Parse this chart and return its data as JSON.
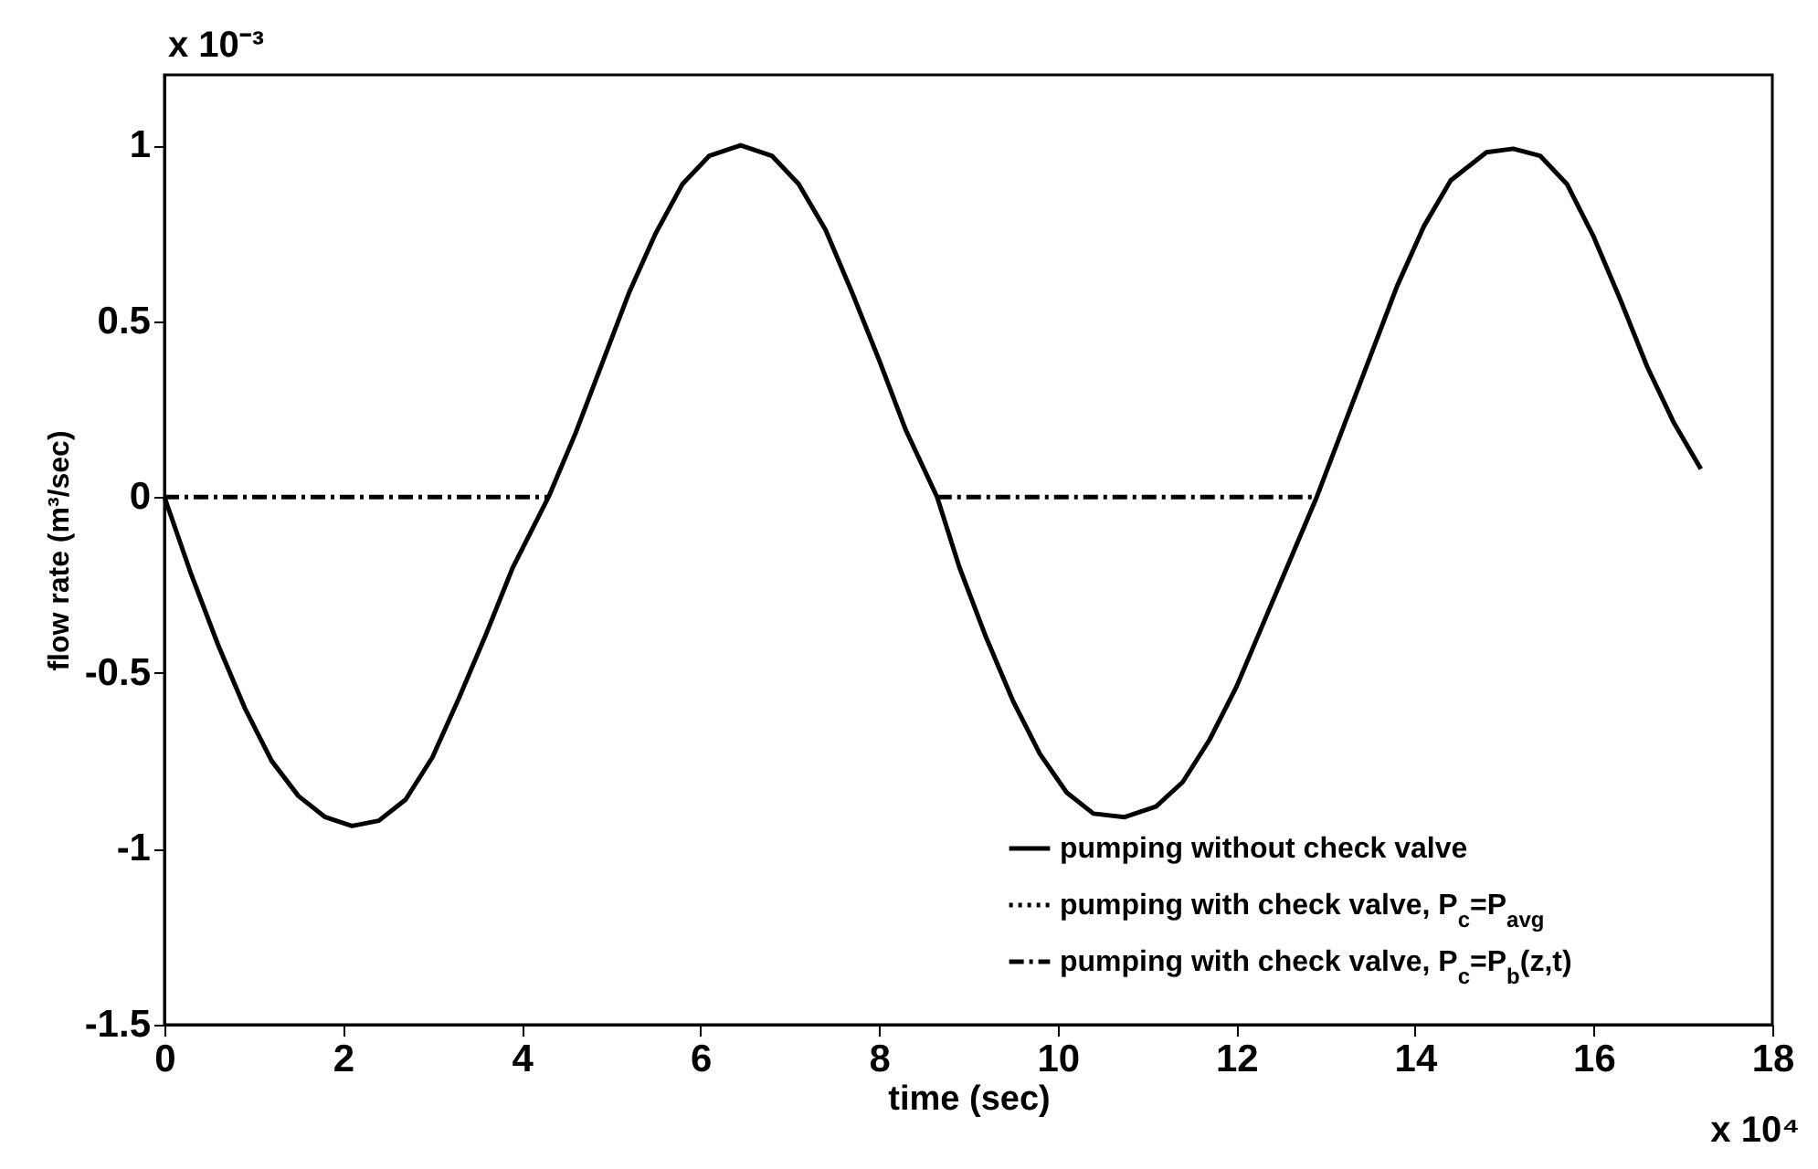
{
  "chart_data": {
    "type": "line",
    "xlabel": "time (sec)",
    "ylabel": "flow rate (m³/sec)",
    "annotations": [
      "x 10⁻³",
      "x 10⁴"
    ],
    "xlim": [
      0,
      18
    ],
    "xticks": [
      0,
      2,
      4,
      6,
      8,
      10,
      12,
      14,
      16,
      18
    ],
    "ylim": [
      -1.5,
      1.2
    ],
    "yticks": [
      -1.5,
      -1,
      -0.5,
      0,
      0.5,
      1
    ],
    "grid": false,
    "legend": "bottom right",
    "marker": "none",
    "series": [
      {
        "name": "pumping without check valve",
        "color": "#000000",
        "line_style": "solid",
        "x": [
          0,
          0.3,
          0.6,
          0.9,
          1.2,
          1.5,
          1.8,
          2.1,
          2.4,
          2.7,
          3.0,
          3.3,
          3.6,
          3.9,
          4.3,
          4.6,
          4.9,
          5.2,
          5.5,
          5.8,
          6.1,
          6.45,
          6.8,
          7.1,
          7.4,
          7.7,
          8.0,
          8.3,
          8.65,
          8.9,
          9.2,
          9.5,
          9.8,
          10.1,
          10.4,
          10.75,
          11.1,
          11.4,
          11.7,
          12.0,
          12.3,
          12.6,
          12.9,
          13.2,
          13.5,
          13.8,
          14.1,
          14.4,
          14.8,
          15.1,
          15.4,
          15.7,
          16.0,
          16.3,
          16.6,
          16.9,
          17.2
        ],
        "values": [
          0,
          -0.22,
          -0.42,
          -0.6,
          -0.75,
          -0.85,
          -0.91,
          -0.935,
          -0.92,
          -0.86,
          -0.74,
          -0.57,
          -0.39,
          -0.2,
          0,
          0.18,
          0.38,
          0.58,
          0.75,
          0.89,
          0.97,
          1.0,
          0.97,
          0.89,
          0.76,
          0.58,
          0.39,
          0.19,
          0,
          -0.2,
          -0.4,
          -0.58,
          -0.73,
          -0.84,
          -0.9,
          -0.91,
          -0.88,
          -0.81,
          -0.69,
          -0.54,
          -0.36,
          -0.18,
          0,
          0.2,
          0.4,
          0.6,
          0.77,
          0.9,
          0.98,
          0.99,
          0.97,
          0.89,
          0.74,
          0.56,
          0.37,
          0.21,
          0.08
        ]
      },
      {
        "name": "pumping with check valve, P$_{c}$=P$_{avg}$",
        "color": "#000000",
        "line_style": "dotted"
      },
      {
        "name": "pumping with check valve, P$_{c}$=P$_{b}$(z,t)",
        "color": "#000000",
        "line_style": "dashdot",
        "x": [
          0,
          4.3,
          6.45,
          8.65,
          12.9
        ],
        "values": [
          0,
          0,
          null,
          0,
          0
        ]
      }
    ]
  }
}
